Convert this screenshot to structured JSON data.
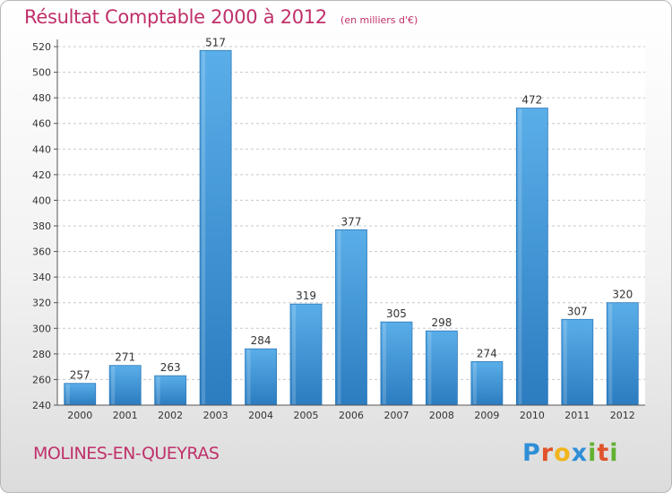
{
  "header": {
    "title": "Résultat Comptable 2000 à 2012",
    "unit": "(en milliers d'€)"
  },
  "footer": {
    "commune": "MOLINES-EN-QUEYRAS",
    "logo_letters": [
      "P",
      "r",
      "o",
      "x",
      "i",
      "t",
      "i"
    ],
    "logo_colors": [
      "#2e8fd6",
      "#e0532a",
      "#f0b51c",
      "#2e8fd6",
      "#62b132",
      "#e0532a",
      "#62b132"
    ]
  },
  "chart_data": {
    "type": "bar",
    "categories": [
      "2000",
      "2001",
      "2002",
      "2003",
      "2004",
      "2005",
      "2006",
      "2007",
      "2008",
      "2009",
      "2010",
      "2011",
      "2012"
    ],
    "values": [
      257,
      271,
      263,
      517,
      284,
      319,
      377,
      305,
      298,
      274,
      472,
      307,
      320
    ],
    "title": "Résultat Comptable 2000 à 2012",
    "xlabel": "",
    "ylabel": "",
    "ylim": [
      240,
      520
    ],
    "yticks": [
      240,
      260,
      280,
      300,
      320,
      340,
      360,
      380,
      400,
      420,
      440,
      460,
      480,
      500,
      520
    ],
    "grid": true,
    "bar_color": "#3d95d8"
  }
}
